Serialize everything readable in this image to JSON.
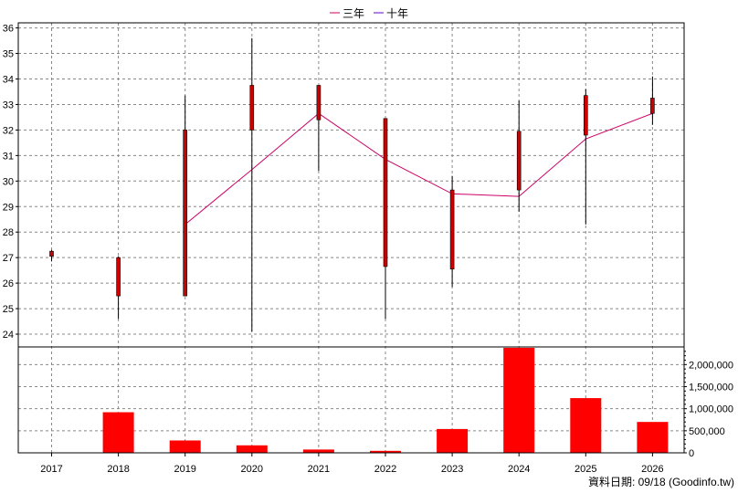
{
  "legend": {
    "items": [
      {
        "label": "三年",
        "color": "#cc0066"
      },
      {
        "label": "十年",
        "color": "#6600cc"
      }
    ]
  },
  "footer": {
    "text": "資料日期: 09/18  (Goodinfo.tw)"
  },
  "colors": {
    "up": "#cc0000",
    "down": "#33cc33",
    "wick": "#000000",
    "ma3": "#cc0066",
    "volume": "#ff0000",
    "grid": "#888888"
  },
  "chart_data": [
    {
      "type": "candlestick",
      "title": "",
      "categories": [
        "2017",
        "2018",
        "2019",
        "2020",
        "2021",
        "2022",
        "2023",
        "2024",
        "2025",
        "2026"
      ],
      "ylim": [
        23.5,
        36.2
      ],
      "yticks": [
        24,
        25,
        26,
        27,
        28,
        29,
        30,
        31,
        32,
        33,
        34,
        35,
        36
      ],
      "candles": [
        {
          "x": "2017",
          "open": 27.05,
          "high": 27.3,
          "low": 26.85,
          "close": 27.25
        },
        {
          "x": "2018",
          "open": 25.5,
          "high": 27.05,
          "low": 24.6,
          "close": 27.0
        },
        {
          "x": "2019",
          "open": 25.5,
          "high": 33.35,
          "low": 25.5,
          "close": 32.0
        },
        {
          "x": "2020",
          "open": 32.0,
          "high": 35.6,
          "low": 24.1,
          "close": 33.75
        },
        {
          "x": "2021",
          "open": 32.4,
          "high": 33.75,
          "low": 30.4,
          "close": 33.75
        },
        {
          "x": "2022",
          "open": 26.65,
          "high": 32.45,
          "low": 24.6,
          "close": 32.45
        },
        {
          "x": "2023",
          "open": 26.55,
          "high": 30.2,
          "low": 25.85,
          "close": 29.65
        },
        {
          "x": "2024",
          "open": 29.65,
          "high": 33.15,
          "low": 28.8,
          "close": 31.95
        },
        {
          "x": "2025",
          "open": 31.8,
          "high": 33.6,
          "low": 28.3,
          "close": 33.35
        },
        {
          "x": "2026",
          "open": 32.65,
          "high": 34.1,
          "low": 32.2,
          "close": 33.25
        }
      ],
      "series": [
        {
          "name": "三年",
          "x": [
            "2019",
            "2020",
            "2021",
            "2022",
            "2023",
            "2024",
            "2025",
            "2026"
          ],
          "values": [
            28.3,
            30.45,
            32.65,
            30.85,
            29.5,
            29.4,
            31.65,
            32.65
          ]
        },
        {
          "name": "十年",
          "x": [],
          "values": []
        }
      ],
      "grid": true,
      "legend_position": "top-center"
    },
    {
      "type": "bar",
      "title": "",
      "categories": [
        "2017",
        "2018",
        "2019",
        "2020",
        "2021",
        "2022",
        "2023",
        "2024",
        "2025",
        "2026"
      ],
      "values": [
        0,
        920000,
        280000,
        170000,
        75000,
        45000,
        540000,
        2380000,
        1240000,
        700000
      ],
      "ylim": [
        0,
        2400000
      ],
      "yticks": [
        0,
        500000,
        1000000,
        1500000,
        2000000
      ],
      "ytick_labels": [
        "0",
        "500,000",
        "1,000,000",
        "1,500,000",
        "2,000,000"
      ],
      "grid": true
    }
  ]
}
